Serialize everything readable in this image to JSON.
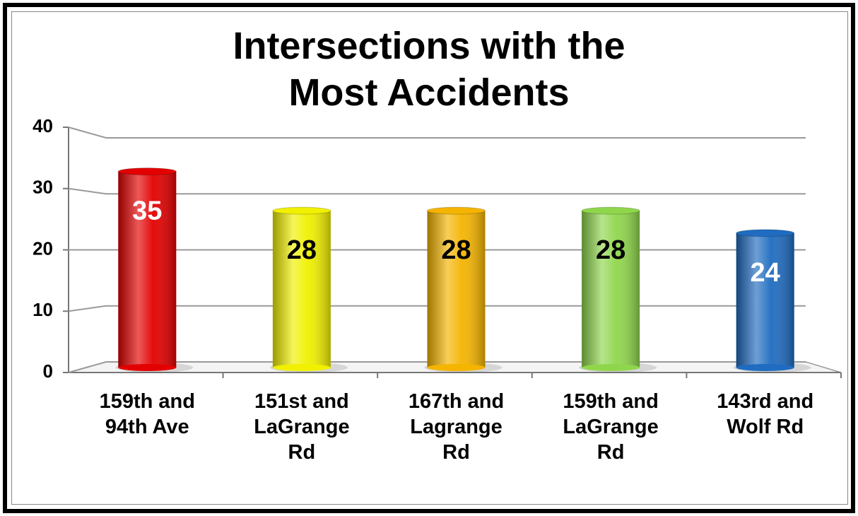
{
  "chart_data": {
    "type": "bar",
    "title": "Intersections with the\nMost Accidents",
    "categories": [
      "159th and\n94th Ave",
      "151st and\nLaGrange\nRd",
      "167th and\nLagrange\nRd",
      "159th and\nLaGrange\nRd",
      "143rd and\nWolf Rd"
    ],
    "values": [
      35,
      28,
      28,
      28,
      24
    ],
    "colors": [
      "#e30000",
      "#f0f000",
      "#f4b400",
      "#8fd64c",
      "#1f6cc0"
    ],
    "value_label_colors": [
      "#ffffff",
      "#000000",
      "#000000",
      "#000000",
      "#ffffff"
    ],
    "ylim": [
      0,
      40
    ],
    "yticks": [
      0,
      10,
      20,
      30,
      40
    ],
    "grid": true
  }
}
